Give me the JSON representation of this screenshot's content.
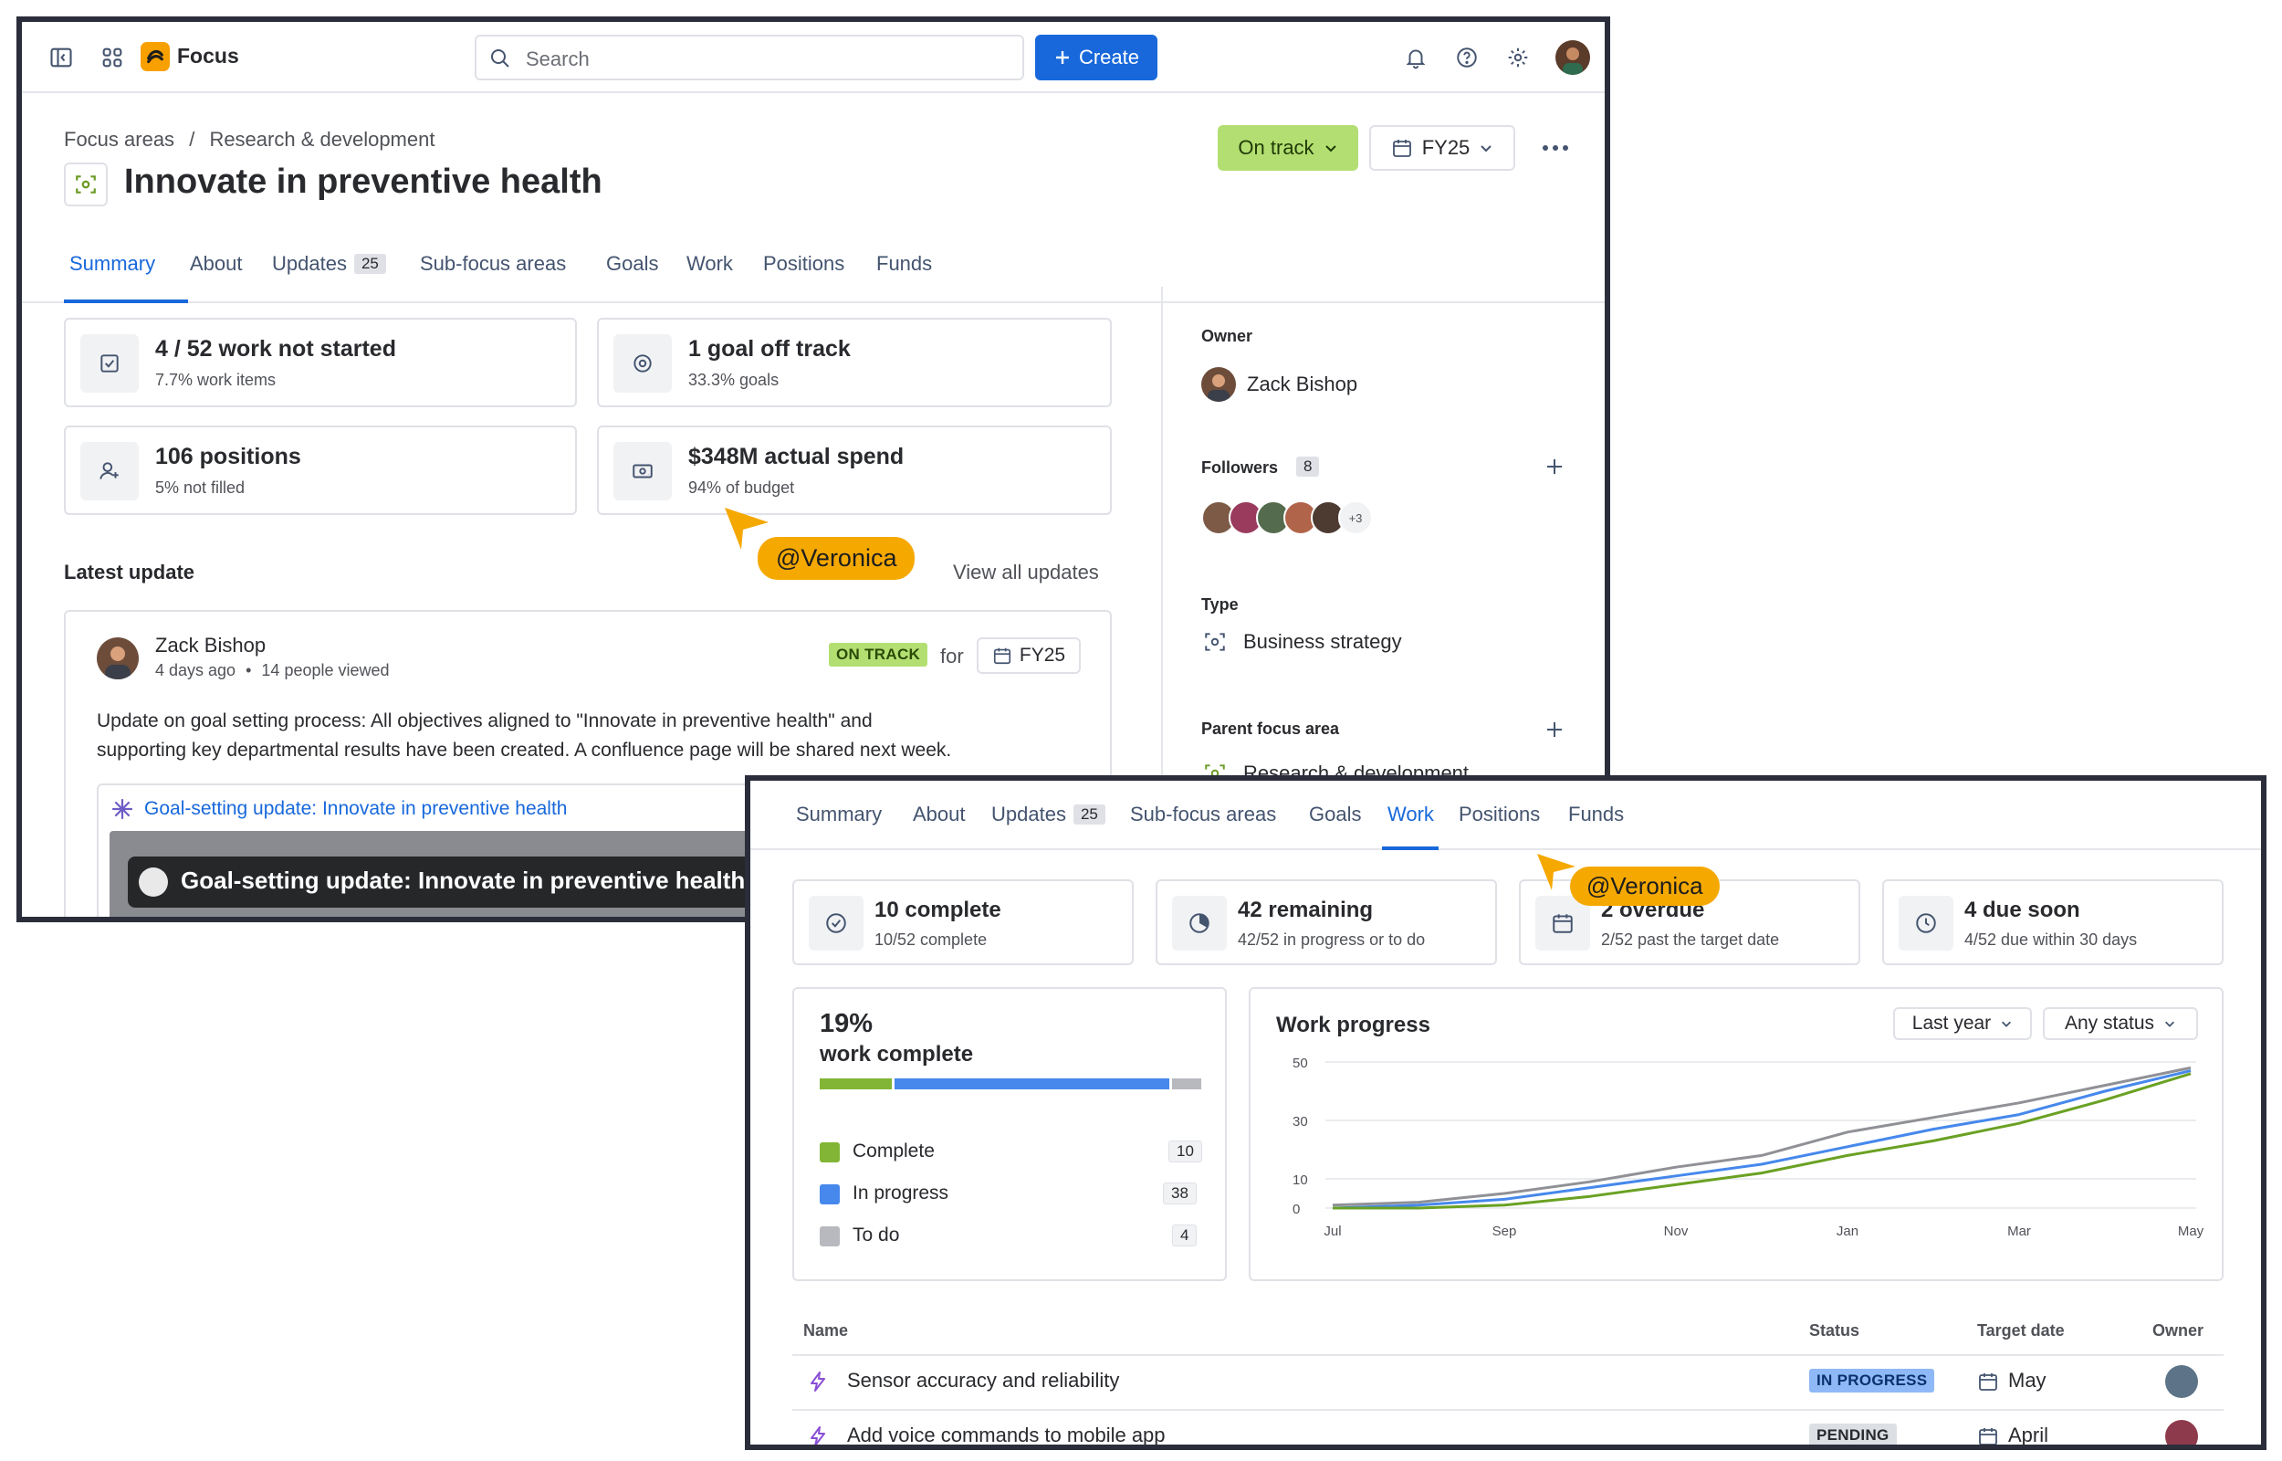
{
  "app": {
    "brand": "Focus"
  },
  "topbar": {
    "search_placeholder": "Search",
    "create_label": "Create"
  },
  "breadcrumb": {
    "root": "Focus areas",
    "separator": "/",
    "current": "Research & development"
  },
  "page_title": "Innovate in preventive health",
  "status_button": {
    "label": "On track"
  },
  "period_button": {
    "label": "FY25"
  },
  "tabs": [
    {
      "label": "Summary"
    },
    {
      "label": "About"
    },
    {
      "label": "Updates",
      "count": "25"
    },
    {
      "label": "Sub-focus areas"
    },
    {
      "label": "Goals"
    },
    {
      "label": "Work"
    },
    {
      "label": "Positions"
    },
    {
      "label": "Funds"
    }
  ],
  "summary_cards": [
    {
      "title": "4 / 52 work not started",
      "sub": "7.7% work items",
      "icon": "check-square-icon"
    },
    {
      "title": "1 goal off track",
      "sub": "33.3% goals",
      "icon": "target-icon"
    },
    {
      "title": "106 positions",
      "sub": "5% not filled",
      "icon": "person-add-icon"
    },
    {
      "title": "$348M actual spend",
      "sub": "94% of budget",
      "icon": "money-icon"
    }
  ],
  "latest_update": {
    "heading": "Latest update",
    "view_all": "View all updates",
    "author": "Zack Bishop",
    "meta_time": "4 days ago",
    "meta_sep": "•",
    "meta_views": "14 people viewed",
    "status": "ON TRACK",
    "for_label": "for",
    "period": "FY25",
    "body_line1": "Update on goal setting process: All objectives aligned to \"Innovate in preventive health\" and",
    "body_line2": "supporting key departmental results have been created. A confluence page will be shared next week.",
    "link_label": "Goal-setting update: Innovate in preventive health",
    "preview_title": "Goal-setting update: Innovate in preventive health"
  },
  "sidebar": {
    "owner_label": "Owner",
    "owner_name": "Zack Bishop",
    "followers_label": "Followers",
    "followers_count": "8",
    "followers_more": "+3",
    "type_label": "Type",
    "type_value": "Business strategy",
    "parent_label": "Parent focus area",
    "parent_value": "Research & development"
  },
  "cursor_tags": {
    "first": "@Veronica",
    "second": "@Veronica"
  },
  "work_cards": [
    {
      "title": "10 complete",
      "sub": "10/52 complete",
      "icon": "check-circle-icon"
    },
    {
      "title": "42 remaining",
      "sub": "42/52 in progress or to do",
      "icon": "pie-icon"
    },
    {
      "title": "2 overdue",
      "sub": "2/52 past the target date",
      "icon": "calendar-icon"
    },
    {
      "title": "4 due soon",
      "sub": "4/52 due within 30 days",
      "icon": "clock-icon"
    }
  ],
  "work_complete": {
    "percent": "19%",
    "label": "work complete",
    "segments": [
      {
        "name": "Complete",
        "count": "10",
        "color": "#82b536"
      },
      {
        "name": "In progress",
        "count": "38",
        "color": "#4688ec"
      },
      {
        "name": "To do",
        "count": "4",
        "color": "#b7b9be"
      }
    ]
  },
  "work_progress": {
    "title": "Work progress",
    "filter_period": "Last year",
    "filter_status": "Any status"
  },
  "chart_data": {
    "type": "line",
    "title": "Work progress",
    "x": [
      "Jul",
      "Aug",
      "Sep",
      "Oct",
      "Nov",
      "Dec",
      "Jan",
      "Feb",
      "Mar",
      "Apr",
      "May"
    ],
    "xticks": [
      "Jul",
      "Sep",
      "Nov",
      "Jan",
      "Mar",
      "May"
    ],
    "yticks": [
      0,
      10,
      30,
      50
    ],
    "ylim": [
      0,
      50
    ],
    "grid": true,
    "series": [
      {
        "color": "#8f9196",
        "values": [
          1,
          2,
          5,
          9,
          14,
          18,
          26,
          31,
          36,
          42,
          48
        ]
      },
      {
        "color": "#4688ec",
        "values": [
          0,
          1,
          3,
          7,
          11,
          15,
          21,
          27,
          32,
          40,
          47
        ]
      },
      {
        "color": "#6aa123",
        "values": [
          0,
          0,
          1,
          4,
          8,
          12,
          18,
          23,
          29,
          37,
          46
        ]
      }
    ]
  },
  "table": {
    "headers": {
      "name": "Name",
      "status": "Status",
      "target": "Target date",
      "owner": "Owner"
    },
    "rows": [
      {
        "name": "Sensor accuracy and reliability",
        "status": "IN PROGRESS",
        "target": "May"
      },
      {
        "name": "Add voice commands to mobile app",
        "status": "PENDING",
        "target": "April"
      }
    ]
  }
}
